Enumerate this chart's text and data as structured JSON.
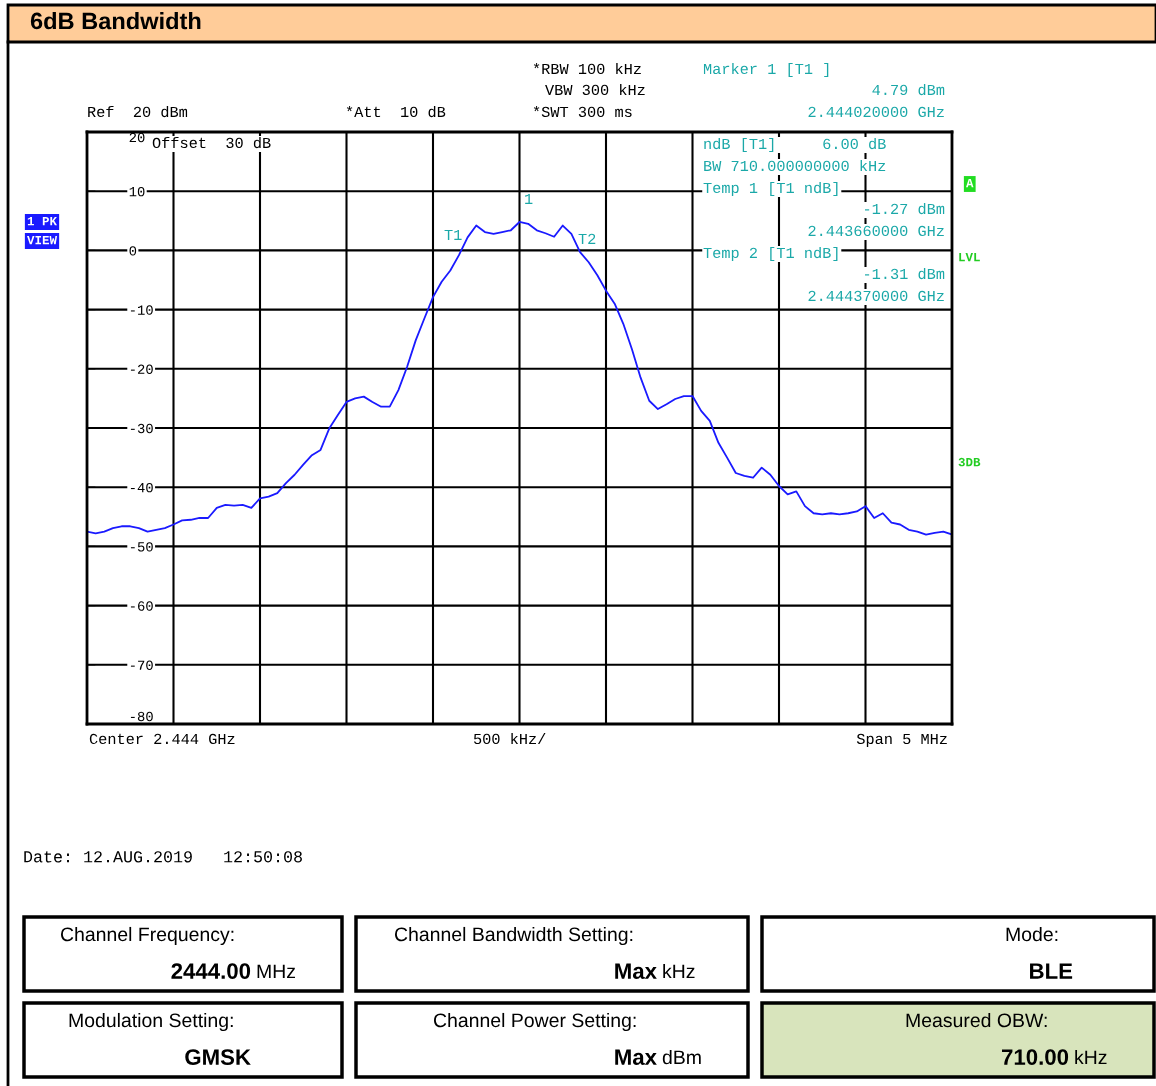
{
  "chart_data": {
    "type": "line",
    "title": "6dB Bandwidth",
    "categories": [
      null,
      null,
      null,
      null,
      null,
      null,
      null,
      null,
      null,
      null,
      null,
      null,
      null,
      null,
      null,
      null,
      null,
      null,
      null,
      null,
      null,
      null,
      null,
      null,
      null,
      null,
      null,
      null,
      null,
      null,
      null,
      null,
      null,
      null,
      null,
      null,
      null,
      null,
      null,
      null,
      null,
      null,
      null,
      null,
      null,
      null,
      null,
      null,
      null,
      null,
      null,
      null,
      null,
      null,
      null,
      null,
      null,
      null,
      null,
      null,
      null,
      null,
      null,
      null,
      null,
      null,
      null,
      null,
      null,
      null,
      null,
      null,
      null,
      null,
      null,
      null,
      null,
      null,
      null,
      null,
      null,
      null,
      null,
      null,
      null,
      null,
      null,
      null,
      null,
      null,
      null,
      null,
      null,
      null,
      null,
      null,
      null,
      null,
      null,
      null,
      null
    ],
    "series": [
      {
        "color": "#1a1aff",
        "values": [
          -47.5,
          -47.8,
          -47.5,
          -46.9,
          -46.6,
          -46.6,
          -46.9,
          -47.5,
          -47.2,
          -46.9,
          -46.3,
          -45.6,
          -45.5,
          -45.2,
          -45.2,
          -43.5,
          -43.0,
          -43.1,
          -43.0,
          -43.5,
          -41.9,
          -41.6,
          -41.0,
          -39.3,
          -37.9,
          -36.2,
          -34.6,
          -33.7,
          -30.1,
          -27.8,
          -25.6,
          -25.0,
          -24.7,
          -25.6,
          -26.4,
          -26.4,
          -23.6,
          -19.7,
          -15.2,
          -11.5,
          -7.9,
          -5.3,
          -3.4,
          -0.8,
          2.2,
          4.2,
          3.1,
          2.8,
          3.1,
          3.4,
          4.8,
          4.5,
          3.4,
          2.9,
          2.3,
          4.2,
          2.8,
          -0.3,
          -2.0,
          -4.2,
          -6.8,
          -9.0,
          -12.4,
          -16.7,
          -21.5,
          -25.4,
          -26.8,
          -26.0,
          -25.1,
          -24.6,
          -24.6,
          -27.1,
          -28.8,
          -32.5,
          -35.0,
          -37.6,
          -38.1,
          -38.4,
          -36.7,
          -37.9,
          -39.8,
          -41.2,
          -40.7,
          -43.2,
          -44.4,
          -44.6,
          -44.4,
          -44.6,
          -44.4,
          -44.1,
          -43.2,
          -45.2,
          -44.4,
          -46.0,
          -46.3,
          -47.2,
          -47.5,
          -48.0,
          -47.7,
          -47.5,
          -48.0
        ]
      }
    ],
    "ylim": [
      -80,
      20
    ],
    "yticks": [
      20,
      10,
      0,
      -10,
      -20,
      -30,
      -40,
      -50,
      -60,
      -70,
      -80
    ],
    "grid": true,
    "marker": "none",
    "line_style": "solid",
    "annotations": [
      "Ref  20 dBm",
      "*Att  10 dB",
      "*RBW 100 kHz",
      "VBW 300 kHz",
      "*SWT 300 ms",
      "Marker 1 [T1 ]",
      "4.79 dBm",
      "2.444020000 GHz",
      "ndB [T1]     6.00 dB",
      "BW 710.000000000 kHz",
      "Temp 1 [T1 ndB]",
      "-1.27 dBm",
      "2.443660000 GHz",
      "Temp 2 [T1 ndB]",
      "-1.31 dBm",
      "2.444370000 GHz",
      "Offset  30 dB",
      "1 PK",
      "VIEW",
      "A",
      "LVL",
      "3DB",
      "Center 2.444 GHz",
      "500 kHz/",
      "Span 5 MHz",
      "Date: 12.AUG.2019   12:50:08",
      "T1",
      "T2",
      "1",
      "Channel Frequency:",
      "2444.00 MHz",
      "Channel Bandwidth Setting:",
      "Max kHz",
      "Mode:",
      "BLE",
      "Modulation Setting:",
      "GMSK",
      "Channel Power Setting:",
      "Max dBm",
      "Measured OBW:",
      "710.00 kHz"
    ]
  }
}
